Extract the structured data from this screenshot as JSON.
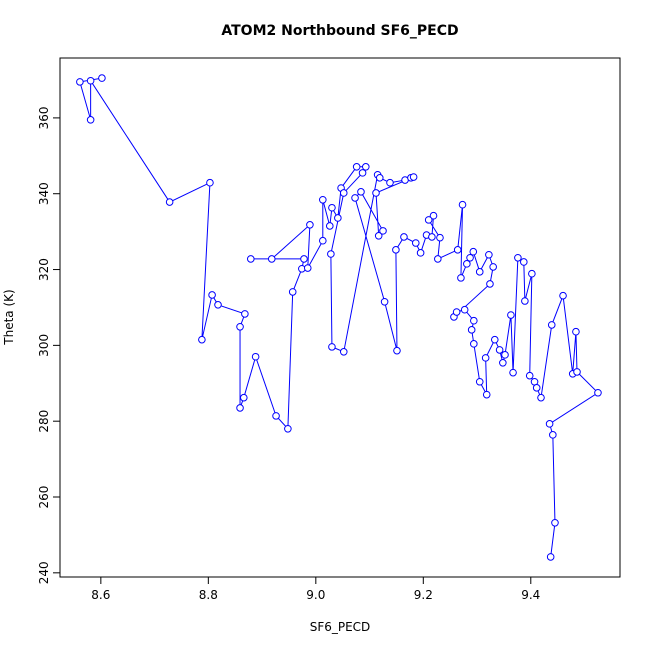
{
  "chart_data": {
    "type": "line",
    "title": "ATOM2 Northbound SF6_PECD",
    "x_label": "SF6_PECD",
    "y_label": "Theta (K)",
    "color": "#0000ff",
    "markers": "open-circle",
    "xlim": [
      8.524,
      9.566
    ],
    "ylim": [
      238.9,
      375.8
    ],
    "xticks": [
      8.6,
      8.8,
      {
        "value": 9,
        "label": "9.0"
      },
      9.2,
      9.4
    ],
    "yticks": [
      240,
      260,
      280,
      300,
      320,
      340,
      360
    ],
    "series": [
      {
        "name": "SF6_PECD",
        "color": "#0000ff",
        "x": [
          8.602,
          8.561,
          8.581,
          8.581,
          8.728,
          8.803,
          8.788,
          8.807,
          8.818,
          8.868,
          8.859,
          8.859,
          8.866,
          8.888,
          8.926,
          8.948,
          8.957,
          8.974,
          8.978,
          8.879,
          8.918,
          8.989,
          8.985,
          9.013,
          9.013,
          9.026,
          9.03,
          9.041,
          9.047,
          9.076,
          9.093,
          9.087,
          9.052,
          9.028,
          9.03,
          9.052,
          9.115,
          9.119,
          9.138,
          9.166,
          9.177,
          9.182,
          9.112,
          9.117,
          9.125,
          9.084,
          9.073,
          9.128,
          9.151,
          9.149,
          9.164,
          9.186,
          9.195,
          9.206,
          9.216,
          9.219,
          9.21,
          9.231,
          9.227,
          9.264,
          9.273,
          9.27,
          9.281,
          9.287,
          9.293,
          9.305,
          9.322,
          9.33,
          9.324,
          9.257,
          9.262,
          9.277,
          9.294,
          9.29,
          9.294,
          9.305,
          9.318,
          9.316,
          9.333,
          9.342,
          9.348,
          9.352,
          9.363,
          9.367,
          9.376,
          9.387,
          9.389,
          9.402,
          9.398,
          9.407,
          9.411,
          9.419,
          9.439,
          9.46,
          9.478,
          9.484,
          9.486,
          9.525,
          9.435,
          9.441,
          9.445,
          9.437
        ],
        "values": [
          370.5,
          369.5,
          359.5,
          369.8,
          337.8,
          342.9,
          301.5,
          313.3,
          310.7,
          308.3,
          304.9,
          283.5,
          286.2,
          297.0,
          281.4,
          278.0,
          314.1,
          320.2,
          322.8,
          322.8,
          322.8,
          331.8,
          320.4,
          327.6,
          338.4,
          331.5,
          336.3,
          333.6,
          341.5,
          347.1,
          347.1,
          345.5,
          340.2,
          324.1,
          299.6,
          298.3,
          345.0,
          344.2,
          342.9,
          343.6,
          344.2,
          344.4,
          340.2,
          328.9,
          330.2,
          340.5,
          338.9,
          311.5,
          298.6,
          325.2,
          328.6,
          327.0,
          324.4,
          329.1,
          328.6,
          334.2,
          333.1,
          328.4,
          322.8,
          325.2,
          337.1,
          317.8,
          321.5,
          323.1,
          324.7,
          319.4,
          323.9,
          320.7,
          316.2,
          307.5,
          308.8,
          309.4,
          306.5,
          304.1,
          300.4,
          290.4,
          287.0,
          296.7,
          301.5,
          298.8,
          295.4,
          297.5,
          308.0,
          292.8,
          323.1,
          322.0,
          311.7,
          318.9,
          292.0,
          290.4,
          288.8,
          286.2,
          305.4,
          313.1,
          292.5,
          303.6,
          293.0,
          287.5,
          279.3,
          276.4,
          253.2,
          244.2
        ]
      }
    ]
  }
}
